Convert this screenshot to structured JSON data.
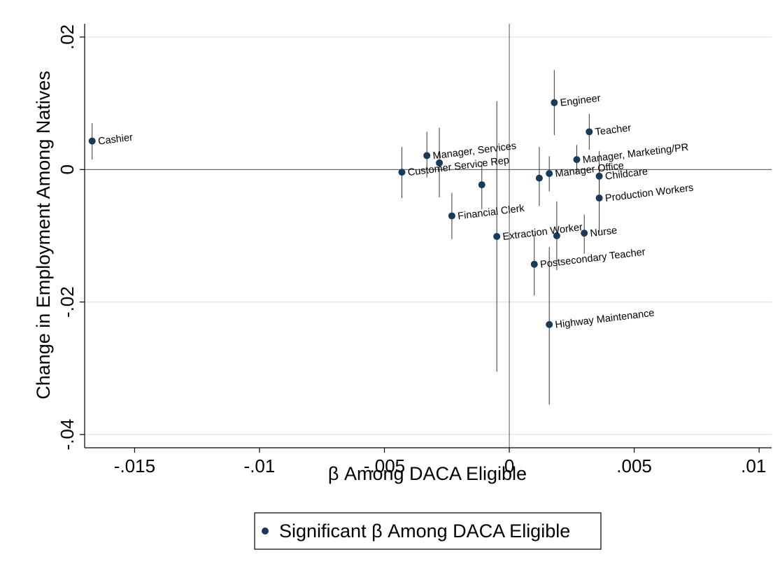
{
  "chart_data": {
    "type": "scatter",
    "xlabel": "β Among DACA Eligible",
    "ylabel": "Change in Employment Among Natives",
    "xlim": [
      -0.017,
      0.0105
    ],
    "ylim": [
      -0.042,
      0.022
    ],
    "x_ticks": [
      -0.015,
      -0.01,
      -0.005,
      0,
      0.005,
      0.01
    ],
    "x_tick_labels": [
      "-.015",
      "-.01",
      "-.005",
      "0",
      ".005",
      ".01"
    ],
    "y_ticks": [
      0.02,
      0,
      -0.02,
      -0.04
    ],
    "y_tick_labels": [
      ".02",
      "0",
      "-.02",
      "-.04"
    ],
    "grid": "horizontal",
    "reference_lines": {
      "x": 0,
      "y": 0
    },
    "legend": {
      "label": "Significant β Among DACA Eligible",
      "placement": "bottom"
    },
    "series": [
      {
        "name": "Significant β Among DACA Eligible",
        "color": "#1a3a5c",
        "points": [
          {
            "label": "Cashier",
            "x": -0.0167,
            "y": 0.0043,
            "ci": [
              0.0015,
              0.007
            ]
          },
          {
            "label": "Manager, Services",
            "x": -0.0033,
            "y": 0.0021,
            "ci": [
              -0.0012,
              0.0057
            ]
          },
          {
            "label": "",
            "x": -0.0028,
            "y": 0.001,
            "ci": [
              -0.0042,
              0.0063
            ]
          },
          {
            "label": "Customer Service Rep",
            "x": -0.0043,
            "y": -0.0004,
            "ci": [
              -0.0043,
              0.0034
            ]
          },
          {
            "label": "",
            "x": -0.0011,
            "y": -0.0023,
            "ci": [
              -0.006,
              0.0012
            ]
          },
          {
            "label": "Financial Clerk",
            "x": -0.0023,
            "y": -0.007,
            "ci": [
              -0.0105,
              -0.0035
            ]
          },
          {
            "label": "Extraction Worker",
            "x": -0.0005,
            "y": -0.0101,
            "ci": [
              -0.0305,
              0.0103
            ]
          },
          {
            "label": "Engineer",
            "x": 0.0018,
            "y": 0.0101,
            "ci": [
              0.0052,
              0.015
            ]
          },
          {
            "label": "Teacher",
            "x": 0.0032,
            "y": 0.0057,
            "ci": [
              0.003,
              0.0084
            ]
          },
          {
            "label": "Manager, Marketing/PR",
            "x": 0.0027,
            "y": 0.0015,
            "ci": [
              -0.0005,
              0.0037
            ]
          },
          {
            "label": "Manager Office",
            "x": 0.0016,
            "y": -0.0006,
            "ci": [
              -0.0033,
              0.002
            ]
          },
          {
            "label": "",
            "x": 0.0012,
            "y": -0.0013,
            "ci": [
              -0.0055,
              0.0034
            ]
          },
          {
            "label": "Childcare",
            "x": 0.0036,
            "y": -0.001,
            "ci": [
              -0.0035,
              0.0028
            ]
          },
          {
            "label": "Production Workers",
            "x": 0.0036,
            "y": -0.0043,
            "ci": [
              -0.0095,
              0.0005
            ]
          },
          {
            "label": "Nurse",
            "x": 0.003,
            "y": -0.0096,
            "ci": [
              -0.0127,
              -0.0068
            ]
          },
          {
            "label": "",
            "x": 0.0019,
            "y": -0.01,
            "ci": [
              -0.0152,
              -0.0048
            ]
          },
          {
            "label": "Postsecondary Teacher",
            "x": 0.001,
            "y": -0.0143,
            "ci": [
              -0.019,
              -0.0098
            ]
          },
          {
            "label": "Highway Maintenance",
            "x": 0.0016,
            "y": -0.0234,
            "ci": [
              -0.0355,
              -0.0117
            ]
          }
        ]
      }
    ]
  }
}
